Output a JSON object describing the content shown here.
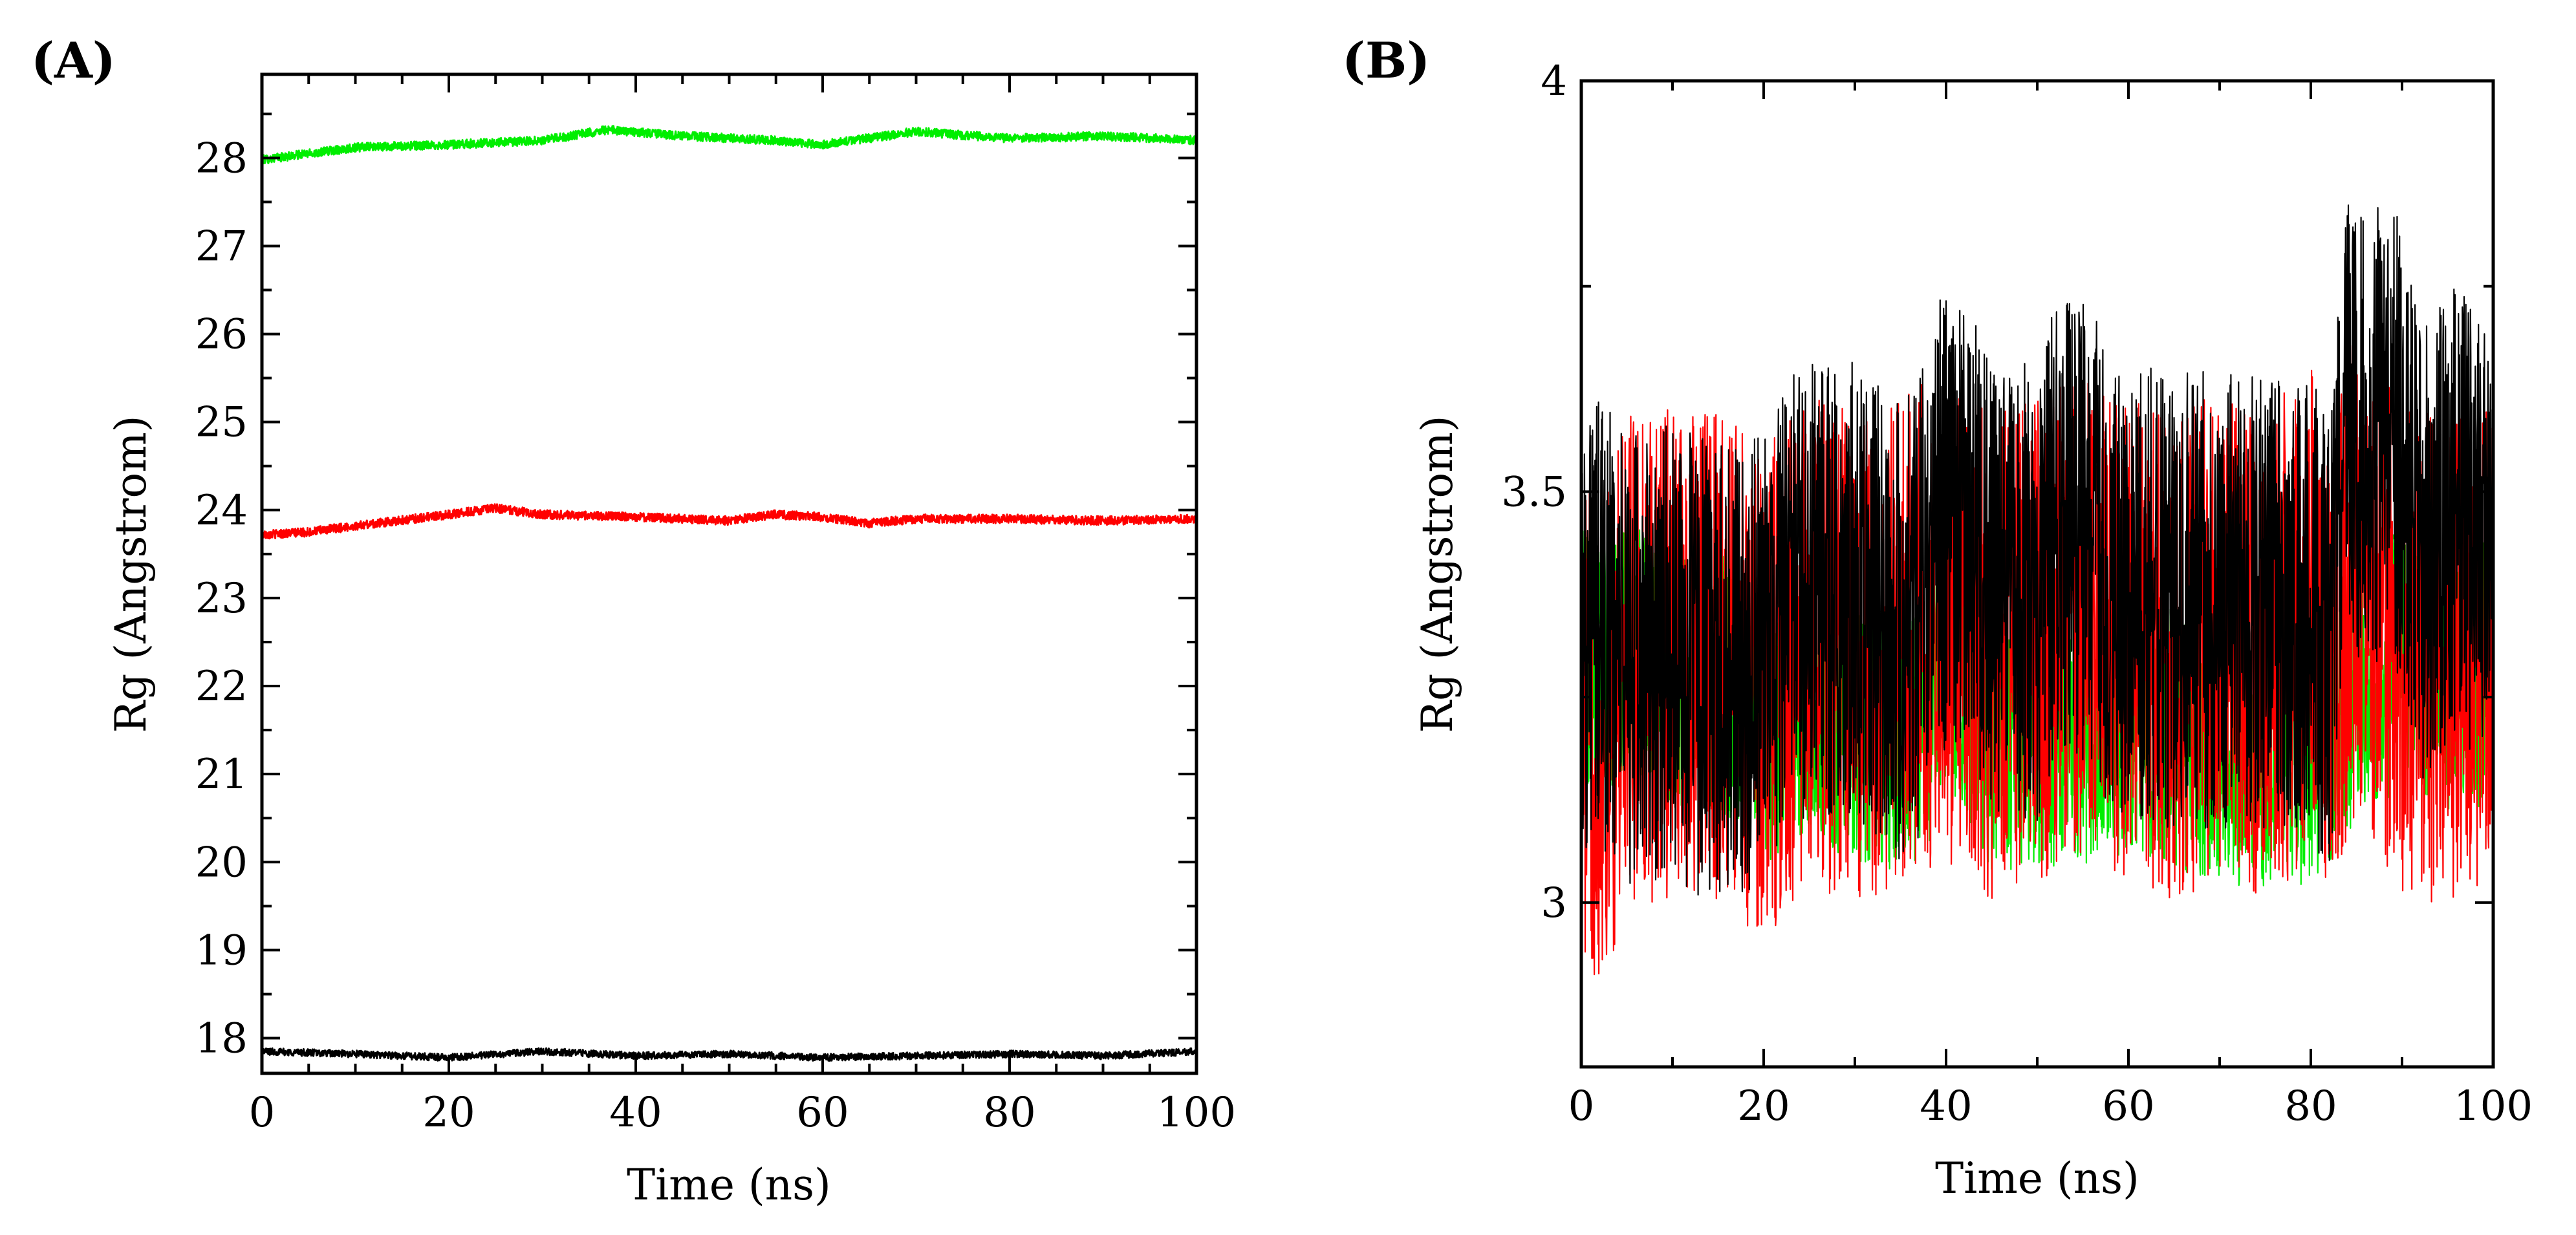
{
  "chart_data": [
    {
      "panel_label": "(A)",
      "type": "line",
      "title": "",
      "xlabel": "Time (ns)",
      "ylabel": "Rg (Angstrom)",
      "xlim": [
        0,
        100
      ],
      "ylim": [
        17.6,
        28.95
      ],
      "xticks": [
        0,
        20,
        40,
        60,
        80,
        100
      ],
      "yticks": [
        18,
        19,
        20,
        21,
        22,
        23,
        24,
        25,
        26,
        27,
        28
      ],
      "xtick_labels": [
        "0",
        "20",
        "40",
        "60",
        "80",
        "100"
      ],
      "ytick_labels": [
        "18",
        "19",
        "20",
        "21",
        "22",
        "23",
        "24",
        "25",
        "26",
        "27",
        "28"
      ],
      "x_minor_step": 5,
      "y_minor_step": 0.5,
      "grid": false,
      "series": [
        {
          "name": "green",
          "color": "#00ee00",
          "noise": 0.05,
          "keypoints": [
            [
              0,
              27.98
            ],
            [
              5,
              28.05
            ],
            [
              10,
              28.12
            ],
            [
              20,
              28.15
            ],
            [
              30,
              28.2
            ],
            [
              37,
              28.32
            ],
            [
              45,
              28.25
            ],
            [
              55,
              28.2
            ],
            [
              60,
              28.15
            ],
            [
              70,
              28.3
            ],
            [
              80,
              28.22
            ],
            [
              90,
              28.25
            ],
            [
              100,
              28.2
            ]
          ]
        },
        {
          "name": "red",
          "color": "#ff0000",
          "noise": 0.05,
          "keypoints": [
            [
              0,
              23.72
            ],
            [
              5,
              23.75
            ],
            [
              10,
              23.82
            ],
            [
              20,
              23.95
            ],
            [
              25,
              24.02
            ],
            [
              30,
              23.95
            ],
            [
              40,
              23.92
            ],
            [
              50,
              23.88
            ],
            [
              55,
              23.95
            ],
            [
              60,
              23.92
            ],
            [
              65,
              23.85
            ],
            [
              70,
              23.9
            ],
            [
              80,
              23.9
            ],
            [
              90,
              23.88
            ],
            [
              100,
              23.9
            ]
          ]
        },
        {
          "name": "black",
          "color": "#000000",
          "noise": 0.04,
          "keypoints": [
            [
              0,
              17.85
            ],
            [
              10,
              17.82
            ],
            [
              20,
              17.78
            ],
            [
              30,
              17.85
            ],
            [
              40,
              17.8
            ],
            [
              50,
              17.82
            ],
            [
              60,
              17.78
            ],
            [
              70,
              17.8
            ],
            [
              80,
              17.82
            ],
            [
              90,
              17.8
            ],
            [
              100,
              17.85
            ]
          ]
        }
      ]
    },
    {
      "panel_label": "(B)",
      "type": "line",
      "title": "",
      "xlabel": "Time (ns)",
      "ylabel": "Rg (Angstrom)",
      "xlim": [
        0,
        100
      ],
      "ylim": [
        2.8,
        4.0
      ],
      "xticks": [
        0,
        20,
        40,
        60,
        80,
        100
      ],
      "yticks": [
        3.0,
        3.5,
        4.0
      ],
      "xtick_labels": [
        "0",
        "20",
        "40",
        "60",
        "80",
        "100"
      ],
      "ytick_labels": [
        "3",
        "3.5",
        "4"
      ],
      "x_minor_step": 10,
      "y_minor_step": 0.25,
      "grid": false,
      "series": [
        {
          "name": "green",
          "color": "#00ee00",
          "noise": 0.16,
          "keypoints": [
            [
              0,
              3.3
            ],
            [
              5,
              3.3
            ],
            [
              10,
              3.28
            ],
            [
              15,
              3.27
            ],
            [
              20,
              3.2
            ],
            [
              25,
              3.25
            ],
            [
              30,
              3.2
            ],
            [
              35,
              3.2
            ],
            [
              38,
              3.2
            ],
            [
              40,
              3.3
            ],
            [
              42,
              3.27
            ],
            [
              45,
              3.2
            ],
            [
              50,
              3.2
            ],
            [
              55,
              3.2
            ],
            [
              60,
              3.22
            ],
            [
              65,
              3.2
            ],
            [
              70,
              3.18
            ],
            [
              75,
              3.18
            ],
            [
              80,
              3.18
            ],
            [
              82,
              3.2
            ],
            [
              85,
              3.25
            ],
            [
              90,
              3.3
            ],
            [
              95,
              3.27
            ],
            [
              100,
              3.28
            ]
          ]
        },
        {
          "name": "red",
          "color": "#ff0000",
          "noise": 0.3,
          "keypoints": [
            [
              0,
              3.22
            ],
            [
              3,
              3.2
            ],
            [
              5,
              3.3
            ],
            [
              10,
              3.3
            ],
            [
              15,
              3.3
            ],
            [
              20,
              3.25
            ],
            [
              25,
              3.32
            ],
            [
              30,
              3.3
            ],
            [
              35,
              3.32
            ],
            [
              40,
              3.35
            ],
            [
              45,
              3.3
            ],
            [
              50,
              3.32
            ],
            [
              55,
              3.35
            ],
            [
              60,
              3.33
            ],
            [
              65,
              3.3
            ],
            [
              70,
              3.32
            ],
            [
              75,
              3.3
            ],
            [
              80,
              3.35
            ],
            [
              83,
              3.3
            ],
            [
              85,
              3.42
            ],
            [
              90,
              3.3
            ],
            [
              95,
              3.3
            ],
            [
              100,
              3.32
            ]
          ]
        },
        {
          "name": "black",
          "color": "#000000",
          "noise": 0.28,
          "keypoints": [
            [
              0,
              3.35
            ],
            [
              5,
              3.3
            ],
            [
              10,
              3.3
            ],
            [
              15,
              3.28
            ],
            [
              20,
              3.3
            ],
            [
              24,
              3.38
            ],
            [
              28,
              3.38
            ],
            [
              30,
              3.38
            ],
            [
              35,
              3.33
            ],
            [
              37,
              3.35
            ],
            [
              38,
              3.45
            ],
            [
              42,
              3.48
            ],
            [
              45,
              3.38
            ],
            [
              50,
              3.38
            ],
            [
              52,
              3.45
            ],
            [
              56,
              3.45
            ],
            [
              58,
              3.38
            ],
            [
              65,
              3.37
            ],
            [
              70,
              3.37
            ],
            [
              75,
              3.37
            ],
            [
              80,
              3.37
            ],
            [
              82,
              3.3
            ],
            [
              84,
              3.58
            ],
            [
              86,
              3.55
            ],
            [
              88,
              3.58
            ],
            [
              90,
              3.55
            ],
            [
              92,
              3.42
            ],
            [
              95,
              3.47
            ],
            [
              100,
              3.45
            ]
          ]
        }
      ]
    }
  ]
}
